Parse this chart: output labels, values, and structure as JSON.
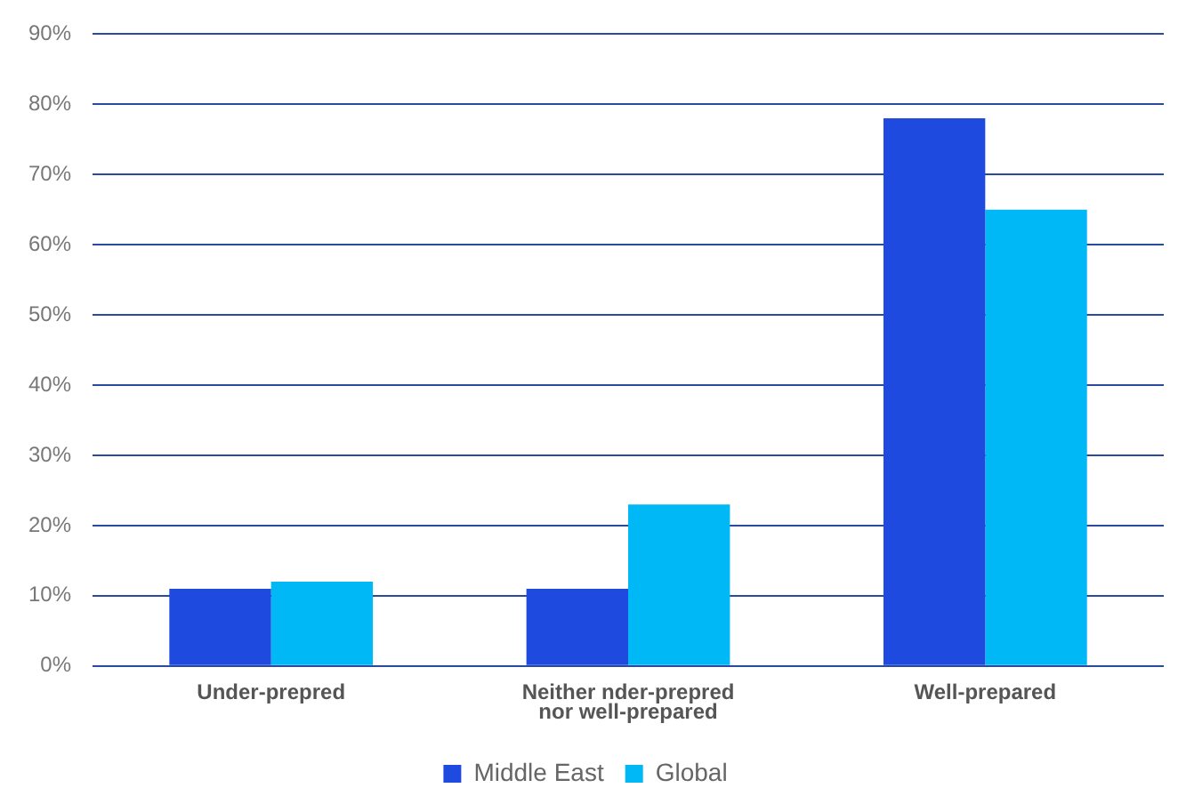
{
  "chart_data": {
    "type": "bar",
    "categories": [
      "Under-prepred",
      "Neither nder-prepred nor well-prepared",
      "Well-prepared"
    ],
    "series": [
      {
        "name": "Middle East",
        "color": "#1f4ae0",
        "values": [
          11,
          11,
          78
        ]
      },
      {
        "name": "Global",
        "color": "#00b8f5",
        "values": [
          12,
          23,
          65
        ]
      }
    ],
    "ylim": [
      0,
      90
    ],
    "yticks": [
      {
        "value": 0,
        "label": "0%"
      },
      {
        "value": 10,
        "label": "10%"
      },
      {
        "value": 20,
        "label": "20%"
      },
      {
        "value": 30,
        "label": "30%"
      },
      {
        "value": 40,
        "label": "40%"
      },
      {
        "value": 50,
        "label": "50%"
      },
      {
        "value": 60,
        "label": "60%"
      },
      {
        "value": 70,
        "label": "70%"
      },
      {
        "value": 80,
        "label": "80%"
      },
      {
        "value": 90,
        "label": "90%"
      }
    ],
    "grid": "y",
    "legend": "bottom"
  }
}
